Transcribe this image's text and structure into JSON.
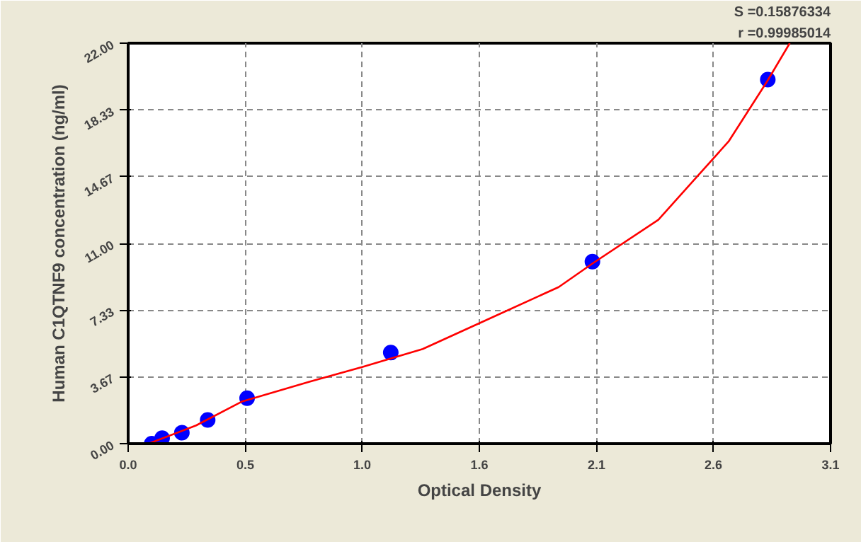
{
  "chart_data": {
    "type": "scatter",
    "xlabel": "Optical Density",
    "ylabel": "Human C1QTNF9 concentration (ng/ml)",
    "annotations": [
      "S =0.15876334",
      "r =0.99985014"
    ],
    "series": [
      {
        "color": "#0000ff",
        "marker": "circle",
        "x": [
          0.104,
          0.15,
          0.237,
          0.351,
          0.525,
          1.159,
          2.049,
          2.823
        ],
        "values": [
          0,
          0.3,
          0.6,
          1.3,
          2.5,
          5,
          10,
          20
        ]
      },
      {
        "type": "line",
        "color": "#ff0000",
        "marker": "none",
        "line_style": "solid",
        "x": [
          0.09,
          0.3,
          0.5,
          0.8,
          1.03,
          1.3,
          1.6,
          1.9,
          2.05,
          2.34,
          2.65,
          2.82,
          2.92
        ],
        "values": [
          0,
          1.0,
          2.3,
          3.4,
          4.2,
          5.2,
          6.9,
          8.6,
          9.9,
          12.3,
          16.6,
          19.9,
          22
        ]
      }
    ],
    "xlim": [
      0,
      3.1
    ],
    "ylim": [
      0,
      22
    ],
    "xticks": [
      {
        "value": 0,
        "label": "0.0"
      },
      {
        "value": 0.517,
        "label": "0.5"
      },
      {
        "value": 1.033,
        "label": "1.0"
      },
      {
        "value": 1.55,
        "label": "1.6"
      },
      {
        "value": 2.067,
        "label": "2.1"
      },
      {
        "value": 2.583,
        "label": "2.6"
      },
      {
        "value": 3.1,
        "label": "3.1"
      }
    ],
    "yticks": [
      {
        "value": 0,
        "label": "0.00"
      },
      {
        "value": 3.667,
        "label": "3.67"
      },
      {
        "value": 7.333,
        "label": "7.33"
      },
      {
        "value": 11,
        "label": "11.00"
      },
      {
        "value": 14.667,
        "label": "14.67"
      },
      {
        "value": 18.333,
        "label": "18.33"
      },
      {
        "value": 22,
        "label": "22.00"
      }
    ],
    "grid": true
  }
}
